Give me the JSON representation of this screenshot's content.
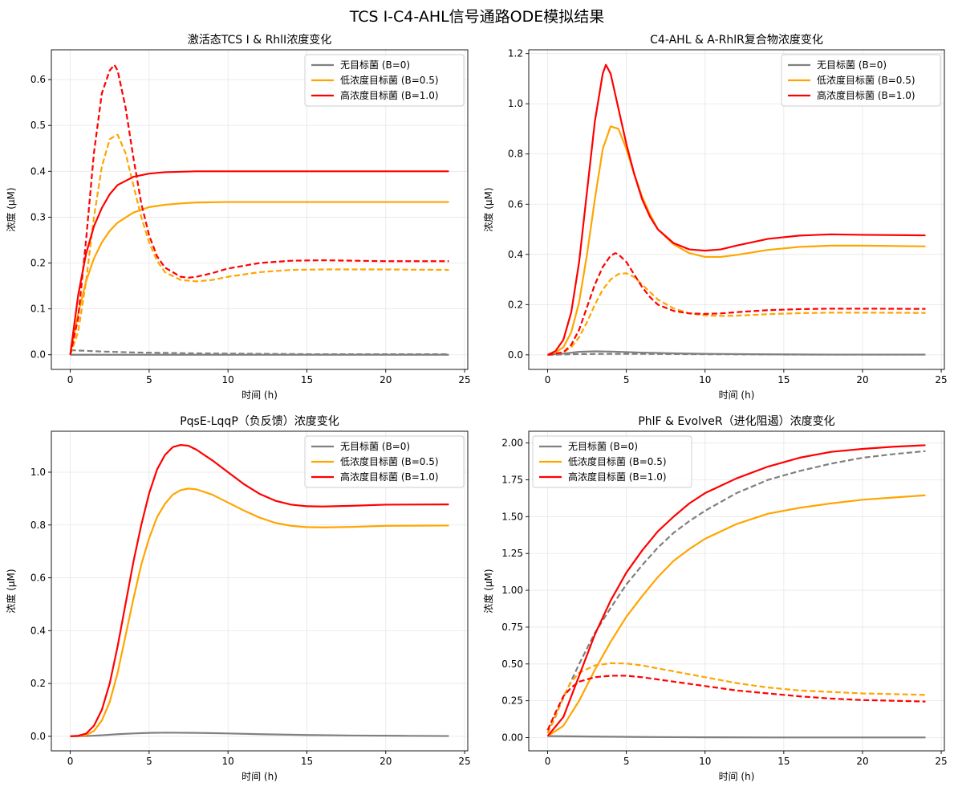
{
  "suptitle": "TCS Ⅰ-C4-AHL信号通路ODE模拟结果",
  "chart_data": [
    {
      "type": "line",
      "title": "激活态TCS Ⅰ & RhlI浓度变化",
      "xlabel": "时间 (h)",
      "ylabel": "浓度 (μM)",
      "xlim": [
        -1.2,
        25.2
      ],
      "ylim": [
        -0.032,
        0.665
      ],
      "xticks": [
        0,
        5,
        10,
        15,
        20,
        25
      ],
      "yticks": [
        0.0,
        0.1,
        0.2,
        0.3,
        0.4,
        0.5,
        0.6
      ],
      "ytick_labels": [
        "0.0",
        "0.1",
        "0.2",
        "0.3",
        "0.4",
        "0.5",
        "0.6"
      ],
      "grid": true,
      "legend_position": "upper-right",
      "legend": [
        "无目标菌 (B=0)",
        "低浓度目标菌 (B=0.5)",
        "高浓度目标菌 (B=1.0)"
      ],
      "series": [
        {
          "name": "无目标菌 (B=0)",
          "color": "#808080",
          "style": "solid",
          "x": [
            0,
            2,
            4,
            8,
            12,
            16,
            20,
            24
          ],
          "y": [
            0,
            0,
            0,
            0,
            0,
            0,
            0,
            0
          ]
        },
        {
          "color": "#808080",
          "style": "dashed",
          "x": [
            0,
            2,
            4,
            8,
            12,
            16,
            20,
            24
          ],
          "y": [
            0.01,
            0.007,
            0.005,
            0.003,
            0.002,
            0.001,
            0.001,
            0.001
          ]
        },
        {
          "name": "低浓度目标菌 (B=0.5)",
          "color": "#FFA500",
          "style": "solid",
          "x": [
            0,
            0.5,
            1,
            1.5,
            2,
            2.5,
            3,
            4,
            5,
            6,
            7,
            8,
            10,
            12,
            16,
            20,
            24
          ],
          "y": [
            0,
            0.09,
            0.16,
            0.21,
            0.245,
            0.27,
            0.288,
            0.31,
            0.322,
            0.327,
            0.33,
            0.332,
            0.333,
            0.333,
            0.333,
            0.333,
            0.333
          ]
        },
        {
          "color": "#FFA500",
          "style": "dashed",
          "x": [
            0,
            0.5,
            1,
            1.5,
            2,
            2.5,
            3,
            3.5,
            4,
            4.5,
            5,
            5.5,
            6,
            7,
            8,
            9,
            10,
            12,
            14,
            16,
            18,
            20,
            24
          ],
          "y": [
            0,
            0.05,
            0.16,
            0.3,
            0.41,
            0.47,
            0.48,
            0.44,
            0.37,
            0.3,
            0.245,
            0.205,
            0.18,
            0.163,
            0.16,
            0.163,
            0.17,
            0.18,
            0.185,
            0.186,
            0.186,
            0.186,
            0.185
          ]
        },
        {
          "name": "高浓度目标菌 (B=1.0)",
          "color": "#FF0000",
          "style": "solid",
          "x": [
            0,
            0.5,
            1,
            1.5,
            2,
            2.5,
            3,
            4,
            5,
            6,
            8,
            10,
            12,
            16,
            20,
            24
          ],
          "y": [
            0,
            0.13,
            0.22,
            0.28,
            0.32,
            0.35,
            0.37,
            0.388,
            0.395,
            0.398,
            0.4,
            0.4,
            0.4,
            0.4,
            0.4,
            0.4
          ]
        },
        {
          "color": "#FF0000",
          "style": "dashed",
          "x": [
            0,
            0.5,
            1,
            1.5,
            2,
            2.5,
            2.8,
            3,
            3.5,
            4,
            4.5,
            5,
            5.5,
            6,
            7,
            7.5,
            8,
            9,
            10,
            12,
            14,
            16,
            18,
            20,
            24
          ],
          "y": [
            0,
            0.08,
            0.25,
            0.44,
            0.57,
            0.62,
            0.632,
            0.62,
            0.54,
            0.43,
            0.33,
            0.26,
            0.215,
            0.19,
            0.17,
            0.168,
            0.17,
            0.178,
            0.188,
            0.2,
            0.205,
            0.206,
            0.205,
            0.204,
            0.204
          ]
        }
      ]
    },
    {
      "type": "line",
      "title": "C4-AHL & A-RhlR复合物浓度变化",
      "xlabel": "时间 (h)",
      "ylabel": "浓度 (μM)",
      "xlim": [
        -1.2,
        25.2
      ],
      "ylim": [
        -0.058,
        1.215
      ],
      "xticks": [
        0,
        5,
        10,
        15,
        20,
        25
      ],
      "yticks": [
        0.0,
        0.2,
        0.4,
        0.6,
        0.8,
        1.0,
        1.2
      ],
      "ytick_labels": [
        "0.0",
        "0.2",
        "0.4",
        "0.6",
        "0.8",
        "1.0",
        "1.2"
      ],
      "grid": true,
      "legend_position": "upper-right",
      "legend": [
        "无目标菌 (B=0)",
        "低浓度目标菌 (B=0.5)",
        "高浓度目标菌 (B=1.0)"
      ],
      "series": [
        {
          "name": "无目标菌 (B=0)",
          "color": "#808080",
          "style": "solid",
          "x": [
            0,
            1,
            2,
            3,
            4,
            6,
            8,
            10,
            14,
            18,
            24
          ],
          "y": [
            0,
            0.005,
            0.012,
            0.014,
            0.013,
            0.009,
            0.006,
            0.004,
            0.002,
            0.001,
            0.001
          ]
        },
        {
          "color": "#808080",
          "style": "dashed",
          "x": [
            0,
            2,
            4,
            6,
            8,
            12,
            16,
            20,
            24
          ],
          "y": [
            0,
            0.003,
            0.004,
            0.004,
            0.003,
            0.002,
            0.001,
            0.001,
            0.001
          ]
        },
        {
          "name": "低浓度目标菌 (B=0.5)",
          "color": "#FFA500",
          "style": "solid",
          "x": [
            0,
            0.5,
            1,
            1.5,
            2,
            2.5,
            3,
            3.5,
            4,
            4.5,
            5,
            5.5,
            6,
            6.5,
            7,
            8,
            9,
            10,
            11,
            12,
            14,
            16,
            18,
            20,
            24
          ],
          "y": [
            0,
            0.01,
            0.03,
            0.09,
            0.21,
            0.4,
            0.62,
            0.82,
            0.91,
            0.9,
            0.82,
            0.72,
            0.63,
            0.56,
            0.5,
            0.44,
            0.405,
            0.39,
            0.39,
            0.398,
            0.418,
            0.43,
            0.435,
            0.435,
            0.432
          ]
        },
        {
          "color": "#FFA500",
          "style": "dashed",
          "x": [
            0,
            1,
            1.5,
            2,
            2.5,
            3,
            3.5,
            4,
            4.5,
            5,
            5.5,
            6,
            6.5,
            7,
            8,
            9,
            10,
            11,
            12,
            14,
            16,
            18,
            20,
            24
          ],
          "y": [
            0,
            0.01,
            0.03,
            0.07,
            0.13,
            0.2,
            0.26,
            0.3,
            0.322,
            0.325,
            0.31,
            0.28,
            0.25,
            0.22,
            0.185,
            0.165,
            0.157,
            0.155,
            0.156,
            0.162,
            0.166,
            0.168,
            0.168,
            0.167
          ]
        },
        {
          "name": "高浓度目标菌 (B=1.0)",
          "color": "#FF0000",
          "style": "solid",
          "x": [
            0,
            0.5,
            1,
            1.5,
            2,
            2.5,
            3,
            3.5,
            3.7,
            4,
            4.5,
            5,
            5.5,
            6,
            6.5,
            7,
            8,
            9,
            10,
            11,
            12,
            14,
            16,
            18,
            20,
            24
          ],
          "y": [
            0,
            0.015,
            0.06,
            0.17,
            0.37,
            0.65,
            0.93,
            1.12,
            1.155,
            1.12,
            0.98,
            0.84,
            0.72,
            0.62,
            0.55,
            0.5,
            0.445,
            0.42,
            0.415,
            0.42,
            0.435,
            0.462,
            0.475,
            0.48,
            0.478,
            0.476
          ]
        },
        {
          "color": "#FF0000",
          "style": "dashed",
          "x": [
            0,
            1,
            1.5,
            2,
            2.5,
            3,
            3.5,
            4,
            4.3,
            4.5,
            5,
            5.5,
            6,
            6.5,
            7,
            8,
            9,
            10,
            11,
            12,
            14,
            16,
            18,
            20,
            24
          ],
          "y": [
            0,
            0.01,
            0.04,
            0.1,
            0.19,
            0.28,
            0.35,
            0.395,
            0.405,
            0.4,
            0.37,
            0.32,
            0.27,
            0.23,
            0.2,
            0.175,
            0.165,
            0.163,
            0.165,
            0.17,
            0.178,
            0.182,
            0.184,
            0.184,
            0.183
          ]
        }
      ]
    },
    {
      "type": "line",
      "title": "PqsE-LqqP（负反馈）浓度变化",
      "xlabel": "时间 (h)",
      "ylabel": "浓度 (μM)",
      "xlim": [
        -1.2,
        25.2
      ],
      "ylim": [
        -0.055,
        1.155
      ],
      "xticks": [
        0,
        5,
        10,
        15,
        20,
        25
      ],
      "yticks": [
        0.0,
        0.2,
        0.4,
        0.6,
        0.8,
        1.0
      ],
      "ytick_labels": [
        "0.0",
        "0.2",
        "0.4",
        "0.6",
        "0.8",
        "1.0"
      ],
      "grid": true,
      "legend_position": "upper-right",
      "legend": [
        "无目标菌 (B=0)",
        "低浓度目标菌 (B=0.5)",
        "高浓度目标菌 (B=1.0)"
      ],
      "series": [
        {
          "name": "无目标菌 (B=0)",
          "color": "#808080",
          "style": "solid",
          "x": [
            0,
            1,
            2,
            3,
            4,
            5,
            6,
            8,
            10,
            12,
            15,
            18,
            21,
            24
          ],
          "y": [
            0,
            0.001,
            0.004,
            0.008,
            0.011,
            0.013,
            0.014,
            0.013,
            0.011,
            0.008,
            0.005,
            0.003,
            0.002,
            0.001
          ]
        },
        {
          "name": "低浓度目标菌 (B=0.5)",
          "color": "#FFA500",
          "style": "solid",
          "x": [
            0,
            0.5,
            1,
            1.5,
            2,
            2.5,
            3,
            3.5,
            4,
            4.5,
            5,
            5.5,
            6,
            6.5,
            7,
            7.5,
            8,
            9,
            10,
            11,
            12,
            13,
            14,
            15,
            16,
            18,
            20,
            24
          ],
          "y": [
            0,
            0.001,
            0.005,
            0.02,
            0.06,
            0.13,
            0.24,
            0.38,
            0.52,
            0.65,
            0.75,
            0.83,
            0.88,
            0.915,
            0.932,
            0.938,
            0.935,
            0.915,
            0.885,
            0.855,
            0.828,
            0.808,
            0.797,
            0.792,
            0.791,
            0.793,
            0.797,
            0.798
          ]
        },
        {
          "name": "高浓度目标菌 (B=1.0)",
          "color": "#FF0000",
          "style": "solid",
          "x": [
            0,
            0.5,
            1,
            1.5,
            2,
            2.5,
            3,
            3.5,
            4,
            4.5,
            5,
            5.5,
            6,
            6.5,
            7,
            7.5,
            8,
            9,
            10,
            11,
            12,
            13,
            14,
            15,
            16,
            18,
            20,
            24
          ],
          "y": [
            0,
            0.002,
            0.01,
            0.04,
            0.1,
            0.2,
            0.34,
            0.5,
            0.66,
            0.8,
            0.92,
            1.01,
            1.065,
            1.095,
            1.103,
            1.1,
            1.085,
            1.045,
            1.0,
            0.955,
            0.918,
            0.892,
            0.877,
            0.871,
            0.87,
            0.873,
            0.877,
            0.878
          ]
        }
      ]
    },
    {
      "type": "line",
      "title": "PhlF & EvolveR（进化阻遏）浓度变化",
      "xlabel": "时间 (h)",
      "ylabel": "浓度 (μM)",
      "xlim": [
        -1.2,
        25.2
      ],
      "ylim": [
        -0.09,
        2.08
      ],
      "xticks": [
        0,
        5,
        10,
        15,
        20,
        25
      ],
      "yticks": [
        0.0,
        0.25,
        0.5,
        0.75,
        1.0,
        1.25,
        1.5,
        1.75,
        2.0
      ],
      "ytick_labels": [
        "0.00",
        "0.25",
        "0.50",
        "0.75",
        "1.00",
        "1.25",
        "1.50",
        "1.75",
        "2.00"
      ],
      "grid": true,
      "legend_position": "upper-left",
      "legend": [
        "无目标菌 (B=0)",
        "低浓度目标菌 (B=0.5)",
        "高浓度目标菌 (B=1.0)"
      ],
      "series": [
        {
          "name": "无目标菌 (B=0)",
          "color": "#808080",
          "style": "solid",
          "x": [
            0,
            2,
            4,
            6,
            8,
            10,
            14,
            18,
            24
          ],
          "y": [
            0.01,
            0.008,
            0.006,
            0.004,
            0.003,
            0.002,
            0.001,
            0.001,
            0.001
          ]
        },
        {
          "color": "#808080",
          "style": "dashed",
          "x": [
            0,
            1,
            2,
            3,
            4,
            5,
            6,
            7,
            8,
            9,
            10,
            12,
            14,
            16,
            18,
            20,
            22,
            24
          ],
          "y": [
            0.03,
            0.27,
            0.5,
            0.71,
            0.88,
            1.04,
            1.17,
            1.29,
            1.39,
            1.47,
            1.54,
            1.66,
            1.75,
            1.81,
            1.86,
            1.9,
            1.925,
            1.945
          ]
        },
        {
          "name": "低浓度目标菌 (B=0.5)",
          "color": "#FFA500",
          "style": "solid",
          "x": [
            0,
            1,
            2,
            3,
            4,
            5,
            6,
            7,
            8,
            9,
            10,
            12,
            14,
            16,
            18,
            20,
            22,
            24
          ],
          "y": [
            0.01,
            0.08,
            0.25,
            0.46,
            0.65,
            0.82,
            0.96,
            1.09,
            1.2,
            1.28,
            1.35,
            1.45,
            1.52,
            1.56,
            1.59,
            1.615,
            1.63,
            1.645
          ]
        },
        {
          "color": "#FFA500",
          "style": "dashed",
          "x": [
            0,
            0.5,
            1,
            1.5,
            2,
            3,
            4,
            5,
            6,
            7,
            8,
            10,
            12,
            14,
            16,
            18,
            20,
            22,
            24
          ],
          "y": [
            0.03,
            0.14,
            0.28,
            0.38,
            0.44,
            0.49,
            0.505,
            0.503,
            0.49,
            0.47,
            0.45,
            0.41,
            0.37,
            0.34,
            0.32,
            0.31,
            0.3,
            0.295,
            0.29
          ]
        },
        {
          "name": "高浓度目标菌 (B=1.0)",
          "color": "#FF0000",
          "style": "solid",
          "x": [
            0,
            1,
            2,
            3,
            4,
            5,
            6,
            7,
            8,
            9,
            10,
            12,
            14,
            16,
            18,
            20,
            22,
            24
          ],
          "y": [
            0.01,
            0.14,
            0.42,
            0.7,
            0.93,
            1.12,
            1.27,
            1.4,
            1.5,
            1.59,
            1.66,
            1.76,
            1.84,
            1.9,
            1.94,
            1.96,
            1.975,
            1.985
          ]
        },
        {
          "color": "#FF0000",
          "style": "dashed",
          "x": [
            0,
            0.5,
            1,
            1.5,
            2,
            3,
            4,
            5,
            6,
            7,
            8,
            10,
            12,
            14,
            16,
            18,
            20,
            22,
            24
          ],
          "y": [
            0.05,
            0.17,
            0.28,
            0.34,
            0.38,
            0.41,
            0.42,
            0.42,
            0.41,
            0.395,
            0.38,
            0.35,
            0.32,
            0.3,
            0.28,
            0.265,
            0.255,
            0.25,
            0.245
          ]
        }
      ]
    }
  ]
}
